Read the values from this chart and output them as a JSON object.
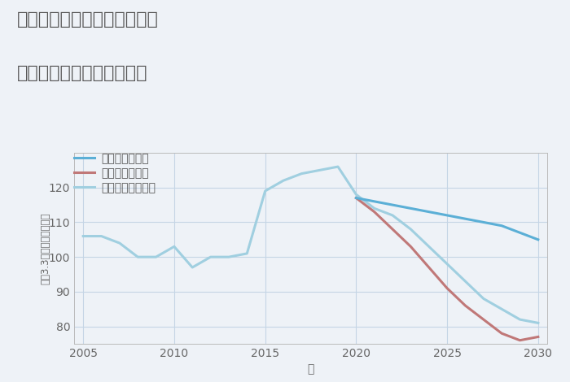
{
  "title_line1": "愛知県稲沢市祖父江町桜方の",
  "title_line2": "中古マンションの価格推移",
  "xlabel": "年",
  "ylabel": "坪（3.3㎡）単価（万円）",
  "background_color": "#eef2f7",
  "plot_background": "#eef2f7",
  "legend": [
    "グッドシナリオ",
    "バッドシナリオ",
    "ノーマルシナリオ"
  ],
  "good_color": "#5bafd6",
  "bad_color": "#c07878",
  "normal_color": "#a0cfe0",
  "good_x": [
    2020,
    2021,
    2022,
    2023,
    2024,
    2025,
    2026,
    2027,
    2028,
    2029,
    2030
  ],
  "good_y": [
    117,
    116,
    115,
    114,
    113,
    112,
    111,
    110,
    109,
    107,
    105
  ],
  "bad_x": [
    2020,
    2021,
    2022,
    2023,
    2024,
    2025,
    2026,
    2027,
    2028,
    2029,
    2030
  ],
  "bad_y": [
    117,
    113,
    108,
    103,
    97,
    91,
    86,
    82,
    78,
    76,
    77
  ],
  "normal_x": [
    2005,
    2006,
    2007,
    2008,
    2009,
    2010,
    2011,
    2012,
    2013,
    2014,
    2015,
    2016,
    2017,
    2018,
    2019,
    2020,
    2021,
    2022,
    2023,
    2024,
    2025,
    2026,
    2027,
    2028,
    2029,
    2030
  ],
  "normal_y": [
    106,
    106,
    104,
    100,
    100,
    103,
    97,
    100,
    100,
    101,
    119,
    122,
    124,
    125,
    126,
    118,
    114,
    112,
    108,
    103,
    98,
    93,
    88,
    85,
    82,
    81
  ],
  "ylim": [
    75,
    130
  ],
  "yticks": [
    80,
    90,
    100,
    110,
    120
  ],
  "xlim": [
    2004.5,
    2030.5
  ],
  "xticks": [
    2005,
    2010,
    2015,
    2020,
    2025,
    2030
  ],
  "title_color": "#555555",
  "axis_color": "#bbbbbb",
  "grid_color": "#c5d5e5",
  "tick_color": "#666666",
  "legend_label_color": "#555555",
  "title_fontsize": 16,
  "axis_label_fontsize": 10,
  "tick_fontsize": 10,
  "legend_fontsize": 10
}
